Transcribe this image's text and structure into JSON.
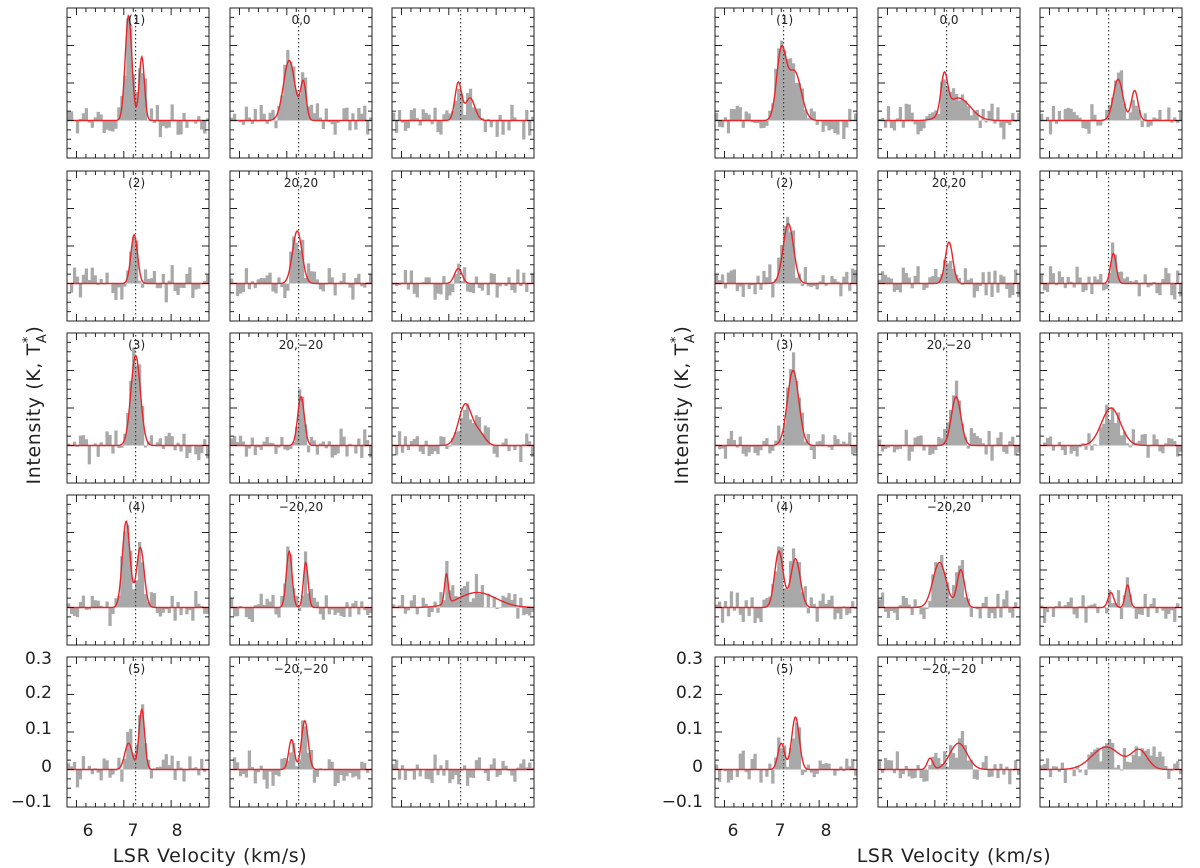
{
  "chart_data": {
    "type": "histogram-grid",
    "description_axis": {
      "xlabel": "LSR Velocity (km/s)",
      "ylabel_main": "Intensity (K, T",
      "ylabel_sub": "A",
      "ylabel_sup": "*",
      "ylabel_close": ")"
    },
    "xlim": [
      5.8,
      8.8
    ],
    "ylim": [
      -0.1,
      0.3
    ],
    "x_ticks": [
      6,
      7,
      8
    ],
    "y_ticks": [
      0.3,
      0.2,
      0.1,
      0,
      -0.1
    ],
    "y_tick_labels": [
      "0.3",
      "0.2",
      "0.1",
      "0",
      "−0.1"
    ],
    "x_tick_labels": [
      "6",
      "7",
      "8"
    ],
    "dotted_vline": 7.25,
    "row_labels": [
      "(1)",
      "(2)",
      "(3)",
      "(4)",
      "(5)"
    ],
    "offset_labels": [
      "0,0",
      "20,20",
      "20,−20",
      "−20,20",
      "−20,−20"
    ],
    "observed_color": "#a9a9a9",
    "fit_color": "#e8252a",
    "groups": [
      {
        "name": "left",
        "rows": [
          [
            {
              "fit": [
                {
                  "a": 0.28,
                  "mu": 7.1,
                  "s": 0.07
                },
                {
                  "a": 0.17,
                  "mu": 7.38,
                  "s": 0.055
                }
              ]
            },
            {
              "fit": [
                {
                  "a": 0.16,
                  "mu": 7.05,
                  "s": 0.12
                },
                {
                  "a": 0.1,
                  "mu": 7.35,
                  "s": 0.06
                }
              ]
            },
            {
              "fit": [
                {
                  "a": 0.1,
                  "mu": 7.2,
                  "s": 0.07
                },
                {
                  "a": 0.06,
                  "mu": 7.45,
                  "s": 0.1
                }
              ]
            }
          ],
          [
            {
              "fit": [
                {
                  "a": 0.13,
                  "mu": 7.22,
                  "s": 0.07
                }
              ]
            },
            {
              "fit": [
                {
                  "a": 0.14,
                  "mu": 7.22,
                  "s": 0.1
                }
              ]
            },
            {
              "fit": [
                {
                  "a": 0.04,
                  "mu": 7.2,
                  "s": 0.08
                }
              ]
            }
          ],
          [
            {
              "fit": [
                {
                  "a": 0.24,
                  "mu": 7.25,
                  "s": 0.1
                }
              ]
            },
            {
              "fit": [
                {
                  "a": 0.13,
                  "mu": 7.3,
                  "s": 0.07
                }
              ]
            },
            {
              "fit": [
                {
                  "a": 0.11,
                  "mu": 7.35,
                  "s": 0.14
                },
                {
                  "a": 0.03,
                  "mu": 7.65,
                  "s": 0.12
                }
              ]
            }
          ],
          [
            {
              "fit": [
                {
                  "a": 0.23,
                  "mu": 7.05,
                  "s": 0.08
                },
                {
                  "a": 0.16,
                  "mu": 7.35,
                  "s": 0.08
                }
              ]
            },
            {
              "fit": [
                {
                  "a": 0.15,
                  "mu": 7.05,
                  "s": 0.06
                },
                {
                  "a": 0.12,
                  "mu": 7.4,
                  "s": 0.05
                }
              ]
            },
            {
              "fit": [
                {
                  "a": 0.08,
                  "mu": 6.95,
                  "s": 0.04
                },
                {
                  "a": 0.04,
                  "mu": 7.6,
                  "s": 0.4
                }
              ]
            }
          ],
          [
            {
              "fit": [
                {
                  "a": 0.07,
                  "mu": 7.1,
                  "s": 0.08
                },
                {
                  "a": 0.16,
                  "mu": 7.38,
                  "s": 0.06
                }
              ]
            },
            {
              "fit": [
                {
                  "a": 0.08,
                  "mu": 7.1,
                  "s": 0.06
                },
                {
                  "a": 0.13,
                  "mu": 7.38,
                  "s": 0.07
                }
              ]
            },
            {
              "fit": []
            }
          ]
        ]
      },
      {
        "name": "right",
        "rows": [
          [
            {
              "fit": [
                {
                  "a": 0.18,
                  "mu": 7.2,
                  "s": 0.1
                },
                {
                  "a": 0.13,
                  "mu": 7.48,
                  "s": 0.14
                }
              ]
            },
            {
              "fit": [
                {
                  "a": 0.1,
                  "mu": 7.2,
                  "s": 0.07
                },
                {
                  "a": 0.06,
                  "mu": 7.5,
                  "s": 0.25
                }
              ]
            },
            {
              "fit": [
                {
                  "a": 0.11,
                  "mu": 7.45,
                  "s": 0.1
                },
                {
                  "a": 0.08,
                  "mu": 7.8,
                  "s": 0.07
                }
              ]
            }
          ],
          [
            {
              "fit": [
                {
                  "a": 0.16,
                  "mu": 7.35,
                  "s": 0.11
                }
              ]
            },
            {
              "fit": [
                {
                  "a": 0.11,
                  "mu": 7.3,
                  "s": 0.08
                }
              ]
            },
            {
              "fit": [
                {
                  "a": 0.08,
                  "mu": 7.35,
                  "s": 0.06
                }
              ]
            }
          ],
          [
            {
              "fit": [
                {
                  "a": 0.2,
                  "mu": 7.45,
                  "s": 0.12
                }
              ]
            },
            {
              "fit": [
                {
                  "a": 0.13,
                  "mu": 7.45,
                  "s": 0.1
                }
              ]
            },
            {
              "fit": [
                {
                  "a": 0.1,
                  "mu": 7.3,
                  "s": 0.2
                }
              ]
            }
          ],
          [
            {
              "fit": [
                {
                  "a": 0.15,
                  "mu": 7.15,
                  "s": 0.09
                },
                {
                  "a": 0.13,
                  "mu": 7.5,
                  "s": 0.1
                }
              ]
            },
            {
              "fit": [
                {
                  "a": 0.12,
                  "mu": 7.1,
                  "s": 0.14
                },
                {
                  "a": 0.1,
                  "mu": 7.55,
                  "s": 0.08
                }
              ]
            },
            {
              "fit": [
                {
                  "a": 0.04,
                  "mu": 7.3,
                  "s": 0.06
                },
                {
                  "a": 0.06,
                  "mu": 7.65,
                  "s": 0.05
                }
              ]
            }
          ],
          [
            {
              "fit": [
                {
                  "a": 0.07,
                  "mu": 7.2,
                  "s": 0.07
                },
                {
                  "a": 0.14,
                  "mu": 7.5,
                  "s": 0.08
                }
              ]
            },
            {
              "fit": [
                {
                  "a": 0.03,
                  "mu": 6.9,
                  "s": 0.06
                },
                {
                  "a": 0.07,
                  "mu": 7.5,
                  "s": 0.18
                }
              ]
            },
            {
              "fit": [
                {
                  "a": 0.06,
                  "mu": 7.2,
                  "s": 0.3
                },
                {
                  "a": 0.05,
                  "mu": 7.9,
                  "s": 0.17
                }
              ]
            }
          ]
        ]
      }
    ]
  }
}
